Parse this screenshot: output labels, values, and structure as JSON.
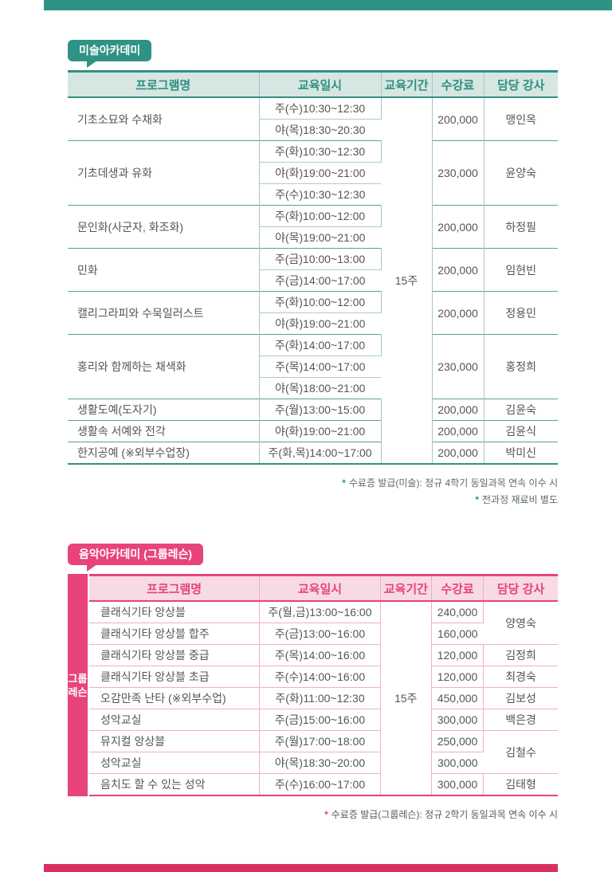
{
  "page": {
    "top_bar_color": "#2E9384",
    "bottom_bar_color": "#D93064"
  },
  "art_section": {
    "badge_label": "미술아카데미",
    "accent_color": "#2E9384",
    "columns": [
      "프로그램명",
      "교육일시",
      "교육기간",
      "수강료",
      "담당 강사"
    ],
    "duration": "15주",
    "programs": [
      {
        "name": "기초소묘와 수채화",
        "schedules": [
          "주(수)10:30~12:30",
          "야(목)18:30~20:30"
        ],
        "fee": "200,000",
        "teacher": "맹인옥"
      },
      {
        "name": "기초데생과 유화",
        "schedules": [
          "주(화)10:30~12:30",
          "야(화)19:00~21:00",
          "주(수)10:30~12:30"
        ],
        "fee": "230,000",
        "teacher": "윤양숙"
      },
      {
        "name": "문인화(사군자, 화조화)",
        "schedules": [
          "주(화)10:00~12:00",
          "야(목)19:00~21:00"
        ],
        "fee": "200,000",
        "teacher": "하정필"
      },
      {
        "name": "민화",
        "schedules": [
          "주(금)10:00~13:00",
          "주(금)14:00~17:00"
        ],
        "fee": "200,000",
        "teacher": "임현빈"
      },
      {
        "name": "캘리그라피와 수묵일러스트",
        "schedules": [
          "주(화)10:00~12:00",
          "야(화)19:00~21:00"
        ],
        "fee": "200,000",
        "teacher": "정용민"
      },
      {
        "name": "홍리와 함께하는 채색화",
        "schedules": [
          "주(화)14:00~17:00",
          "주(목)14:00~17:00",
          "야(목)18:00~21:00"
        ],
        "fee": "230,000",
        "teacher": "홍정희"
      },
      {
        "name": "생활도예(도자기)",
        "schedules": [
          "주(월)13:00~15:00"
        ],
        "fee": "200,000",
        "teacher": "김윤숙"
      },
      {
        "name": "생활속 서예와 전각",
        "schedules": [
          "야(화)19:00~21:00"
        ],
        "fee": "200,000",
        "teacher": "김윤식"
      },
      {
        "name": "한지공예 (※외부수업장)",
        "schedules": [
          "주(화,목)14:00~17:00"
        ],
        "fee": "200,000",
        "teacher": "박미신"
      }
    ],
    "notes": [
      {
        "mark": "*",
        "text": "수료증 발급(미술): 정규 4학기 동일과목 연속 이수 시"
      },
      {
        "mark": "*",
        "text": "전과정 재료비 별도"
      }
    ]
  },
  "music_section": {
    "badge_label": "음악아카데미 (그룹레슨)",
    "accent_color": "#E8437A",
    "side_label_lines": [
      "그룹",
      "레슨"
    ],
    "columns": [
      "프로그램명",
      "교육일시",
      "교육기간",
      "수강료",
      "담당 강사"
    ],
    "duration": "15주",
    "rows": [
      {
        "name": "클래식기타 앙상블",
        "schedule": "주(월,금)13:00~16:00",
        "fee": "240,000",
        "teacher": "양영숙",
        "teacher_rowspan": 2
      },
      {
        "name": "클래식기타 앙상블 합주",
        "schedule": "주(금)13:00~16:00",
        "fee": "160,000"
      },
      {
        "name": "클래식기타 앙상블 중급",
        "schedule": "주(목)14:00~16:00",
        "fee": "120,000",
        "teacher": "김정희",
        "teacher_rowspan": 1
      },
      {
        "name": "클래식기타 앙상블 초급",
        "schedule": "주(수)14:00~16:00",
        "fee": "120,000",
        "teacher": "최경숙",
        "teacher_rowspan": 1
      },
      {
        "name": "오감만족 난타 (※외부수업)",
        "schedule": "주(화)11:00~12:30",
        "fee": "450,000",
        "teacher": "김보성",
        "teacher_rowspan": 1
      },
      {
        "name": "성악교실",
        "schedule": "주(금)15:00~16:00",
        "fee": "300,000",
        "teacher": "백은경",
        "teacher_rowspan": 1
      },
      {
        "name": "뮤지컬 앙상블",
        "schedule": "주(월)17:00~18:00",
        "fee": "250,000",
        "teacher": "김철수",
        "teacher_rowspan": 2
      },
      {
        "name": "성악교실",
        "schedule": "야(목)18:30~20:00",
        "fee": "300,000"
      },
      {
        "name": "음치도 할 수 있는 성악",
        "schedule": "주(수)16:00~17:00",
        "fee": "300,000",
        "teacher": "김태형",
        "teacher_rowspan": 1
      }
    ],
    "notes": [
      {
        "mark": "*",
        "text": "수료증 발급(그룹레슨): 정규 2학기 동일과목 연속 이수 시"
      }
    ]
  }
}
